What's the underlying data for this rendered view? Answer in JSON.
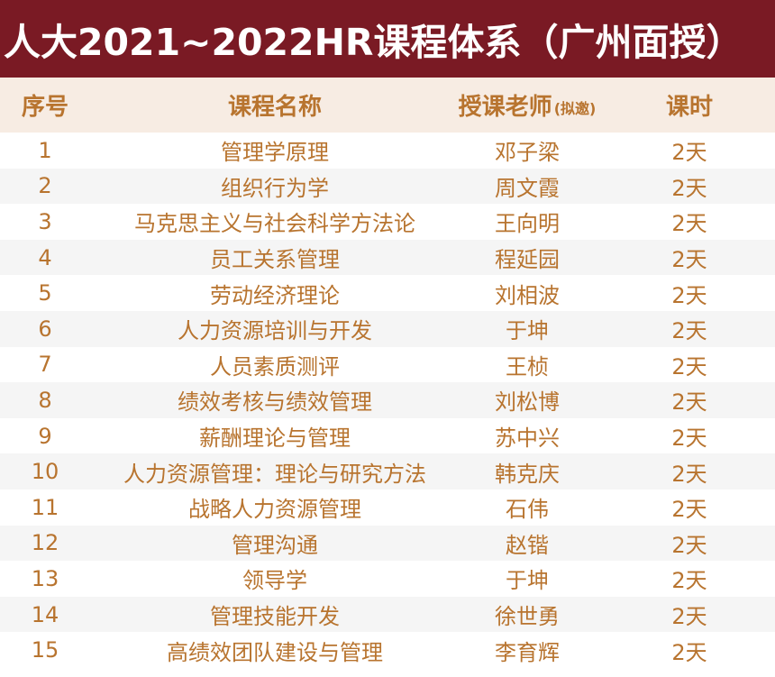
{
  "title": "人大2021~2022HR课程体系（广州面授）",
  "headers": {
    "index": "序号",
    "course": "课程名称",
    "teacher": "授课老师",
    "teacher_note": "(拟邀)",
    "hours": "课时"
  },
  "rows": [
    {
      "index": "1",
      "course": "管理学原理",
      "teacher": "邓子梁",
      "hours": "2天"
    },
    {
      "index": "2",
      "course": "组织行为学",
      "teacher": "周文霞",
      "hours": "2天"
    },
    {
      "index": "3",
      "course": "马克思主义与社会科学方法论",
      "teacher": "王向明",
      "hours": "2天"
    },
    {
      "index": "4",
      "course": "员工关系管理",
      "teacher": "程延园",
      "hours": "2天"
    },
    {
      "index": "5",
      "course": "劳动经济理论",
      "teacher": "刘相波",
      "hours": "2天"
    },
    {
      "index": "6",
      "course": "人力资源培训与开发",
      "teacher": "于坤",
      "hours": "2天"
    },
    {
      "index": "7",
      "course": "人员素质测评",
      "teacher": "王桢",
      "hours": "2天"
    },
    {
      "index": "8",
      "course": "绩效考核与绩效管理",
      "teacher": "刘松博",
      "hours": "2天"
    },
    {
      "index": "9",
      "course": "薪酬理论与管理",
      "teacher": "苏中兴",
      "hours": "2天"
    },
    {
      "index": "10",
      "course": "人力资源管理：理论与研究方法",
      "teacher": "韩克庆",
      "hours": "2天"
    },
    {
      "index": "11",
      "course": "战略人力资源管理",
      "teacher": "石伟",
      "hours": "2天"
    },
    {
      "index": "12",
      "course": "管理沟通",
      "teacher": "赵锴",
      "hours": "2天"
    },
    {
      "index": "13",
      "course": "领导学",
      "teacher": "于坤",
      "hours": "2天"
    },
    {
      "index": "14",
      "course": "管理技能开发",
      "teacher": "徐世勇",
      "hours": "2天"
    },
    {
      "index": "15",
      "course": "高绩效团队建设与管理",
      "teacher": "李育辉",
      "hours": "2天"
    }
  ]
}
